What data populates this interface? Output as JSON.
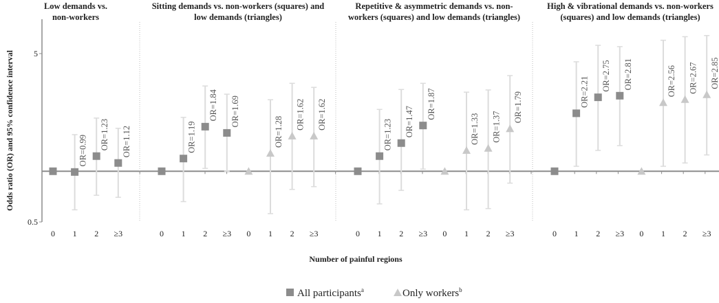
{
  "chart_data": {
    "type": "scatter",
    "title": "",
    "xlabel": "Number of painful regions",
    "ylabel": "Odds ratio (OR) and 95% confidence interval",
    "yscale": "log",
    "ylim": [
      0.5,
      6.5
    ],
    "yticks": [
      "5",
      "0.5"
    ],
    "ytick_values": [
      5,
      0.5
    ],
    "reference_line": 1,
    "grid": false,
    "legend_position": "bottom-center",
    "legend": [
      {
        "name": "All participants",
        "sup": "a",
        "marker": "square",
        "color": "#8c8c8c"
      },
      {
        "name": "Only workers",
        "sup": "b",
        "marker": "triangle",
        "color": "#c8c8c8"
      }
    ],
    "ci_color": "#dcdcdc",
    "panels": [
      {
        "title": [
          "Low demands vs.",
          "non-workers"
        ],
        "series": [
          {
            "name": "All participants",
            "marker": "square",
            "categories": [
              "0",
              "1",
              "2",
              "≥3"
            ],
            "or": [
              1,
              0.99,
              1.23,
              1.12
            ],
            "ci_low": [
              null,
              0.59,
              0.72,
              0.7
            ],
            "ci_high": [
              null,
              1.65,
              2.07,
              1.8
            ],
            "labels": [
              "",
              "OR=0.99",
              "OR=1.23",
              "OR=1.12"
            ]
          }
        ]
      },
      {
        "title": [
          "Sitting demands vs. non-workers (squares) and",
          "low demands (triangles)"
        ],
        "series": [
          {
            "name": "All participants",
            "marker": "square",
            "categories": [
              "0",
              "1",
              "2",
              "≥3"
            ],
            "or": [
              1,
              1.19,
              1.84,
              1.69
            ],
            "ci_low": [
              null,
              0.66,
              1.04,
              1.0
            ],
            "ci_high": [
              null,
              2.09,
              3.21,
              2.87
            ],
            "labels": [
              "",
              "OR=1.19",
              "OR=1.84",
              "OR=1.69"
            ]
          },
          {
            "name": "Only workers",
            "marker": "triangle",
            "categories": [
              "0",
              "1",
              "2",
              "≥3"
            ],
            "or": [
              1,
              1.28,
              1.62,
              1.62
            ],
            "ci_low": [
              null,
              0.56,
              0.78,
              0.81
            ],
            "ci_high": [
              null,
              2.66,
              3.33,
              3.15
            ],
            "labels": [
              "",
              "OR=1.28",
              "OR=1.62",
              "OR=1.62"
            ]
          }
        ]
      },
      {
        "title": [
          "Repetitive & asymmetric demands vs. non-",
          "workers (squares) and low demands (triangles)"
        ],
        "series": [
          {
            "name": "All participants",
            "marker": "square",
            "categories": [
              "0",
              "1",
              "2",
              "≥3"
            ],
            "or": [
              1,
              1.23,
              1.47,
              1.87
            ],
            "ci_low": [
              null,
              0.64,
              0.77,
              1.03
            ],
            "ci_high": [
              null,
              2.33,
              3.06,
              3.33
            ],
            "labels": [
              "",
              "OR=1.23",
              "OR=1.47",
              "OR=1.87"
            ]
          },
          {
            "name": "Only workers",
            "marker": "triangle",
            "categories": [
              "0",
              "1",
              "2",
              "≥3"
            ],
            "or": [
              1,
              1.33,
              1.37,
              1.79
            ],
            "ci_low": [
              null,
              0.59,
              0.6,
              0.85
            ],
            "ci_high": [
              null,
              2.95,
              3.04,
              3.7
            ],
            "labels": [
              "",
              "OR=1.33",
              "OR=1.37",
              "OR=1.79"
            ]
          }
        ]
      },
      {
        "title": [
          "High & vibrational demands vs. non-workers",
          "(squares) and low demands (triangles)"
        ],
        "series": [
          {
            "name": "All participants",
            "marker": "square",
            "categories": [
              "0",
              "1",
              "2",
              "≥3"
            ],
            "or": [
              1,
              2.21,
              2.75,
              2.81
            ],
            "ci_low": [
              null,
              1.07,
              1.33,
              1.42
            ],
            "ci_high": [
              null,
              4.47,
              5.6,
              5.5
            ],
            "labels": [
              "",
              "OR=2.21",
              "OR=2.75",
              "OR=2.81"
            ]
          },
          {
            "name": "Only workers",
            "marker": "triangle",
            "categories": [
              "0",
              "1",
              "2",
              "≥3"
            ],
            "or": [
              1,
              2.56,
              2.67,
              2.85
            ],
            "ci_low": [
              null,
              1.07,
              1.12,
              1.25
            ],
            "ci_high": [
              null,
              6.0,
              6.3,
              6.4
            ],
            "labels": [
              "",
              "OR=2.56",
              "OR=2.67",
              "OR=2.85"
            ]
          }
        ]
      }
    ]
  }
}
